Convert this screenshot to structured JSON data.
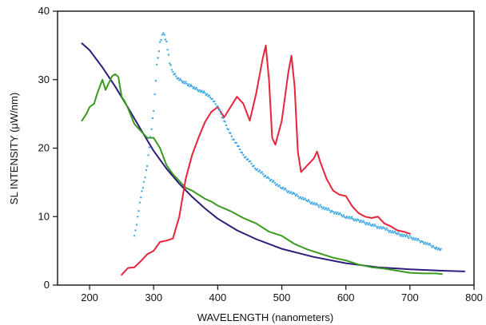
{
  "chart_data": {
    "type": "line",
    "title": "",
    "xlabel": "WAVELENGTH (nanometers)",
    "ylabel": "SL INTENSITY (μW/nm)",
    "xlim": [
      150,
      800
    ],
    "ylim": [
      0,
      40
    ],
    "xticks": [
      200,
      300,
      400,
      500,
      600,
      700,
      800
    ],
    "yticks": [
      0,
      10,
      20,
      30,
      40
    ],
    "grid": false,
    "legend": "none",
    "series": [
      {
        "color": "#2b1d7a",
        "style": "solid",
        "x": [
          188,
          200,
          220,
          240,
          260,
          280,
          300,
          320,
          340,
          360,
          380,
          400,
          430,
          460,
          500,
          550,
          600,
          650,
          700,
          750,
          785
        ],
        "y": [
          35.3,
          34.3,
          31.8,
          29.0,
          25.9,
          22.7,
          19.6,
          17.0,
          14.8,
          12.9,
          11.2,
          9.7,
          8.0,
          6.7,
          5.3,
          4.1,
          3.2,
          2.6,
          2.3,
          2.1,
          2.0
        ]
      },
      {
        "color": "#3a9a1e",
        "style": "solid",
        "x": [
          188,
          195,
          200,
          207,
          212,
          216,
          220,
          225,
          230,
          235,
          240,
          245,
          250,
          255,
          260,
          270,
          280,
          290,
          300,
          310,
          320,
          330,
          340,
          350,
          360,
          370,
          380,
          390,
          400,
          420,
          440,
          460,
          480,
          500,
          520,
          540,
          560,
          580,
          600,
          620,
          640,
          660,
          680,
          700,
          720,
          740,
          750
        ],
        "y": [
          24,
          25,
          26,
          26.5,
          28,
          29,
          30,
          28.5,
          29.5,
          30.5,
          30.8,
          30.4,
          27.5,
          26.8,
          25.8,
          23.5,
          22.5,
          21.5,
          21.5,
          20,
          17.5,
          16.2,
          15.2,
          14.2,
          13.8,
          13.2,
          12.6,
          12.2,
          11.6,
          10.8,
          9.8,
          9.0,
          7.8,
          7.2,
          6.0,
          5.2,
          4.6,
          4.0,
          3.6,
          3.0,
          2.6,
          2.4,
          2.1,
          1.8,
          1.7,
          1.7,
          1.6
        ]
      },
      {
        "color": "#e8233a",
        "style": "solid",
        "x": [
          250,
          260,
          270,
          280,
          290,
          300,
          310,
          320,
          330,
          340,
          350,
          360,
          370,
          380,
          390,
          400,
          410,
          420,
          430,
          440,
          450,
          460,
          470,
          475,
          480,
          485,
          490,
          500,
          510,
          515,
          520,
          525,
          530,
          540,
          550,
          555,
          560,
          570,
          580,
          590,
          600,
          610,
          620,
          630,
          640,
          650,
          660,
          670,
          680,
          690,
          700
        ],
        "y": [
          1.5,
          2.5,
          2.6,
          3.5,
          4.5,
          5.0,
          6.3,
          6.5,
          6.8,
          10.0,
          15.5,
          19.0,
          21.5,
          23.8,
          25.3,
          26.0,
          24.5,
          26.0,
          27.5,
          26.5,
          24.0,
          28.0,
          33.0,
          35.0,
          30.0,
          21.5,
          20.5,
          24.0,
          31.0,
          33.5,
          29.0,
          19.5,
          16.5,
          17.5,
          18.5,
          19.5,
          18.0,
          15.5,
          13.8,
          13.2,
          13.0,
          11.5,
          10.5,
          10.0,
          9.8,
          10.0,
          9.0,
          8.6,
          8.0,
          7.8,
          7.5
        ]
      },
      {
        "color": "#3fa9e6",
        "style": "dotted",
        "x": [
          270,
          275,
          280,
          285,
          290,
          295,
          300,
          305,
          310,
          315,
          320,
          325,
          330,
          340,
          350,
          360,
          370,
          380,
          390,
          400,
          410,
          420,
          440,
          460,
          480,
          500,
          520,
          540,
          560,
          580,
          600,
          620,
          640,
          660,
          680,
          700,
          720,
          740,
          750
        ],
        "y": [
          7,
          10,
          13,
          15,
          17.5,
          21.5,
          25.5,
          32,
          35.5,
          37,
          35.5,
          32.5,
          31,
          30,
          29.5,
          29,
          28.5,
          28,
          27.3,
          26,
          24,
          22,
          19,
          17,
          15.5,
          14.2,
          13.2,
          12.3,
          11.5,
          10.7,
          10.0,
          9.4,
          8.8,
          8.2,
          7.5,
          7.0,
          6.3,
          5.5,
          5.0
        ]
      }
    ]
  }
}
